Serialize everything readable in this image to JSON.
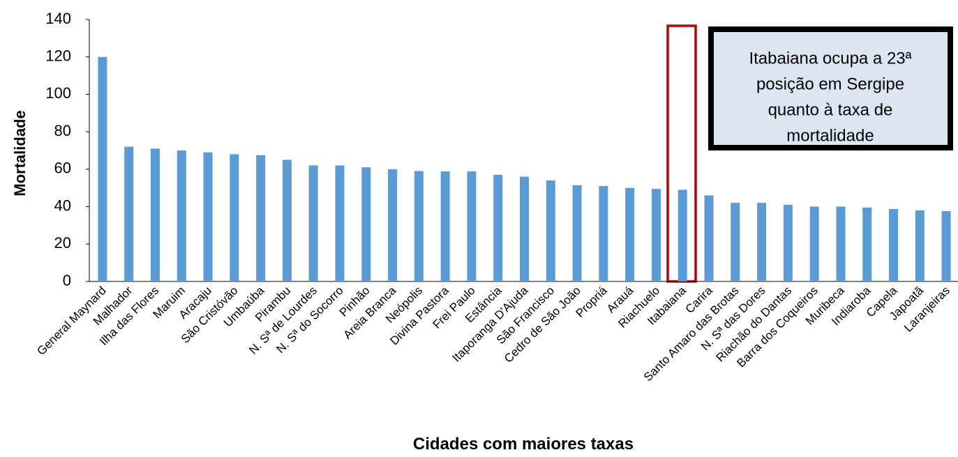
{
  "chart_data": {
    "type": "bar",
    "x_label": "Cidades com maiores taxas",
    "y_label": "Mortalidade",
    "annotation": [
      "Itabaiana ocupa a 23ª",
      "posição em Sergipe",
      "quanto à taxa de",
      "mortalidade"
    ],
    "categories": [
      "General Maynard",
      "Malhador",
      "Ilha das Flores",
      "Maruim",
      "Aracaju",
      "São Cristóvão",
      "Umbaúba",
      "Pirambu",
      "N. Sª de Lourdes",
      "N. Sª do Socorro",
      "Pinhão",
      "Areia Branca",
      "Neópolis",
      "Divina Pastora",
      "Frei Paulo",
      "Estância",
      "Itaporanga D'Ajuda",
      "São Francisco",
      "Cedro de São João",
      "Propriá",
      "Arauá",
      "Riachuelo",
      "Itabaiana",
      "Carira",
      "Santo Amaro das Brotas",
      "N. Sª das Dores",
      "Riachão do Dantas",
      "Barra dos Coqueiros",
      "Muribeca",
      "Indiaroba",
      "Capela",
      "Japoatã",
      "Laranjeiras"
    ],
    "values": [
      120,
      72,
      71,
      70,
      69,
      68,
      67.5,
      65,
      62,
      62,
      61,
      60,
      59,
      58.8,
      58.8,
      57,
      56,
      54,
      51.4,
      51,
      50,
      49.5,
      49,
      46,
      42,
      42,
      41,
      40,
      40,
      39.5,
      38.7,
      38,
      37.6
    ],
    "color": "#5b9bd5",
    "ylim": [
      0,
      140
    ],
    "yticks": [
      0,
      20,
      40,
      60,
      80,
      100,
      120,
      140
    ],
    "grid": false
  }
}
